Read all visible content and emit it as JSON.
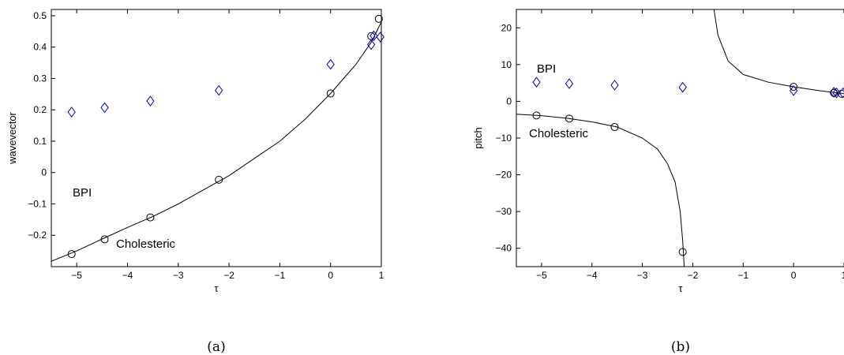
{
  "chart_data": [
    {
      "type": "scatter",
      "caption": "(a)",
      "xlabel": "τ",
      "ylabel": "wavevector",
      "xlim": [
        -5.5,
        1
      ],
      "ylim": [
        -0.3,
        0.52
      ],
      "xticks": [
        -5,
        -4,
        -3,
        -2,
        -1,
        0,
        1
      ],
      "yticks": [
        -0.2,
        -0.1,
        0,
        0.1,
        0.2,
        0.3,
        0.4,
        0.5
      ],
      "xtick_labels": [
        "−5",
        "−4",
        "−3",
        "−2",
        "−1",
        "0",
        "1"
      ],
      "ytick_labels": [
        "−0.2",
        "−0.1",
        "0",
        "0.1",
        "0.2",
        "0.3",
        "0.4",
        "0.5"
      ],
      "annotations": [
        {
          "text": "BPI",
          "x": -5.0,
          "y": 0.235
        },
        {
          "text": "Cholesteric",
          "x": -4.1,
          "y": -0.225
        }
      ],
      "series": [
        {
          "name": "BPI",
          "marker": "diamond",
          "color": "#0000cc",
          "x": [
            -5.1,
            -4.45,
            -3.55,
            -2.2,
            0.0,
            0.8,
            0.85,
            0.98
          ],
          "y": [
            0.193,
            0.207,
            0.228,
            0.262,
            0.345,
            0.408,
            0.436,
            0.432
          ]
        },
        {
          "name": "Cholesteric",
          "marker": "circle",
          "color": "#000000",
          "x": [
            -5.1,
            -4.45,
            -3.55,
            -2.2,
            0.0,
            0.8,
            0.95
          ],
          "y": [
            -0.26,
            -0.213,
            -0.143,
            -0.023,
            0.252,
            0.435,
            0.49
          ]
        }
      ],
      "fit_curve": {
        "x": [
          -5.5,
          -5.0,
          -4.5,
          -4.0,
          -3.5,
          -3.0,
          -2.5,
          -2.0,
          -1.5,
          -1.0,
          -0.5,
          0.0,
          0.5,
          0.8,
          1.0
        ],
        "y": [
          -0.283,
          -0.25,
          -0.212,
          -0.175,
          -0.14,
          -0.1,
          -0.055,
          -0.01,
          0.045,
          0.1,
          0.17,
          0.252,
          0.345,
          0.415,
          0.48
        ]
      }
    },
    {
      "type": "scatter",
      "caption": "(b)",
      "xlabel": "τ",
      "ylabel": "pitch",
      "xlim": [
        -5.5,
        1
      ],
      "ylim": [
        -45,
        25
      ],
      "xticks": [
        -5,
        -4,
        -3,
        -2,
        -1,
        0,
        1
      ],
      "yticks": [
        -40,
        -30,
        -20,
        -10,
        0,
        10,
        20
      ],
      "xtick_labels": [
        "−5",
        "−4",
        "−3",
        "−2",
        "−1",
        "0",
        "1"
      ],
      "ytick_labels": [
        "−40",
        "−30",
        "−20",
        "−10",
        "0",
        "10",
        "20"
      ],
      "annotations": [
        {
          "text": "BPI",
          "x": -5.0,
          "y": 7.0
        },
        {
          "text": "Cholesteric",
          "x": -5.1,
          "y": -9.5
        }
      ],
      "series": [
        {
          "name": "BPI",
          "marker": "diamond",
          "color": "#0000cc",
          "x": [
            -5.1,
            -4.45,
            -3.55,
            -2.2,
            0.0,
            0.8,
            0.85,
            0.98
          ],
          "y": [
            5.2,
            4.8,
            4.4,
            3.8,
            2.9,
            2.45,
            2.3,
            2.3
          ]
        },
        {
          "name": "Cholesteric",
          "marker": "circle",
          "color": "#000000",
          "x": [
            -5.1,
            -4.45,
            -3.55,
            -2.2,
            0.0,
            0.8,
            0.95
          ],
          "y": [
            -3.85,
            -4.7,
            -7.0,
            -41.0,
            3.95,
            2.3,
            2.05
          ]
        }
      ],
      "fit_curve_branches": [
        {
          "x": [
            -5.5,
            -5.0,
            -4.5,
            -4.0,
            -3.5,
            -3.0,
            -2.7,
            -2.5,
            -2.35,
            -2.25,
            -2.2,
            -2.17
          ],
          "y": [
            -3.5,
            -3.9,
            -4.6,
            -5.6,
            -7.0,
            -10.0,
            -13.0,
            -17.0,
            -22.0,
            -30.0,
            -38.0,
            -45.0
          ]
        },
        {
          "x": [
            -1.58,
            -1.5,
            -1.3,
            -1.0,
            -0.5,
            0.0,
            0.5,
            1.0
          ],
          "y": [
            25.0,
            18.0,
            11.0,
            7.3,
            5.2,
            3.95,
            2.9,
            2.1
          ]
        }
      ]
    }
  ]
}
